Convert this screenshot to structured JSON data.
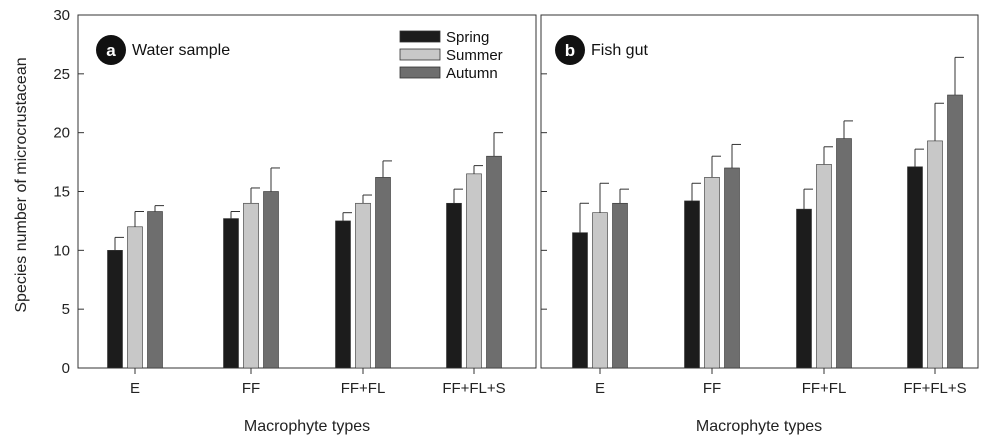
{
  "chart_data": {
    "type": "bar",
    "ylabel": "Species number of microcrustacean",
    "ylim": [
      0,
      30
    ],
    "yticks": [
      "0",
      "5",
      "10",
      "15",
      "20",
      "25",
      "30"
    ],
    "categories": [
      "E",
      "FF",
      "FF+FL",
      "FF+FL+S"
    ],
    "legend": {
      "placement": "top-right of panel a",
      "entries": [
        "Spring",
        "Summer",
        "Autumn"
      ]
    },
    "series_colors": {
      "Spring": "#1c1c1c",
      "Summer": "#c8c8c8",
      "Autumn": "#6e6e6e"
    },
    "panels": [
      {
        "badge": "a",
        "title": "Water sample",
        "xlabel": "Macrophyte types",
        "series": [
          {
            "name": "Spring",
            "values": [
              10.0,
              12.7,
              12.5,
              14.0
            ],
            "errors": [
              1.1,
              0.6,
              0.7,
              1.2
            ]
          },
          {
            "name": "Summer",
            "values": [
              12.0,
              14.0,
              14.0,
              16.5
            ],
            "errors": [
              1.3,
              1.3,
              0.7,
              0.7
            ]
          },
          {
            "name": "Autumn",
            "values": [
              13.3,
              15.0,
              16.2,
              18.0
            ],
            "errors": [
              0.5,
              2.0,
              1.4,
              2.0
            ]
          }
        ]
      },
      {
        "badge": "b",
        "title": "Fish gut",
        "xlabel": "Macrophyte types",
        "series": [
          {
            "name": "Spring",
            "values": [
              11.5,
              14.2,
              13.5,
              17.1
            ],
            "errors": [
              2.5,
              1.5,
              1.7,
              1.5
            ]
          },
          {
            "name": "Summer",
            "values": [
              13.2,
              16.2,
              17.3,
              19.3
            ],
            "errors": [
              2.5,
              1.8,
              1.5,
              3.2
            ]
          },
          {
            "name": "Autumn",
            "values": [
              14.0,
              17.0,
              19.5,
              23.2
            ],
            "errors": [
              1.2,
              2.0,
              1.5,
              3.2
            ]
          }
        ]
      }
    ]
  }
}
